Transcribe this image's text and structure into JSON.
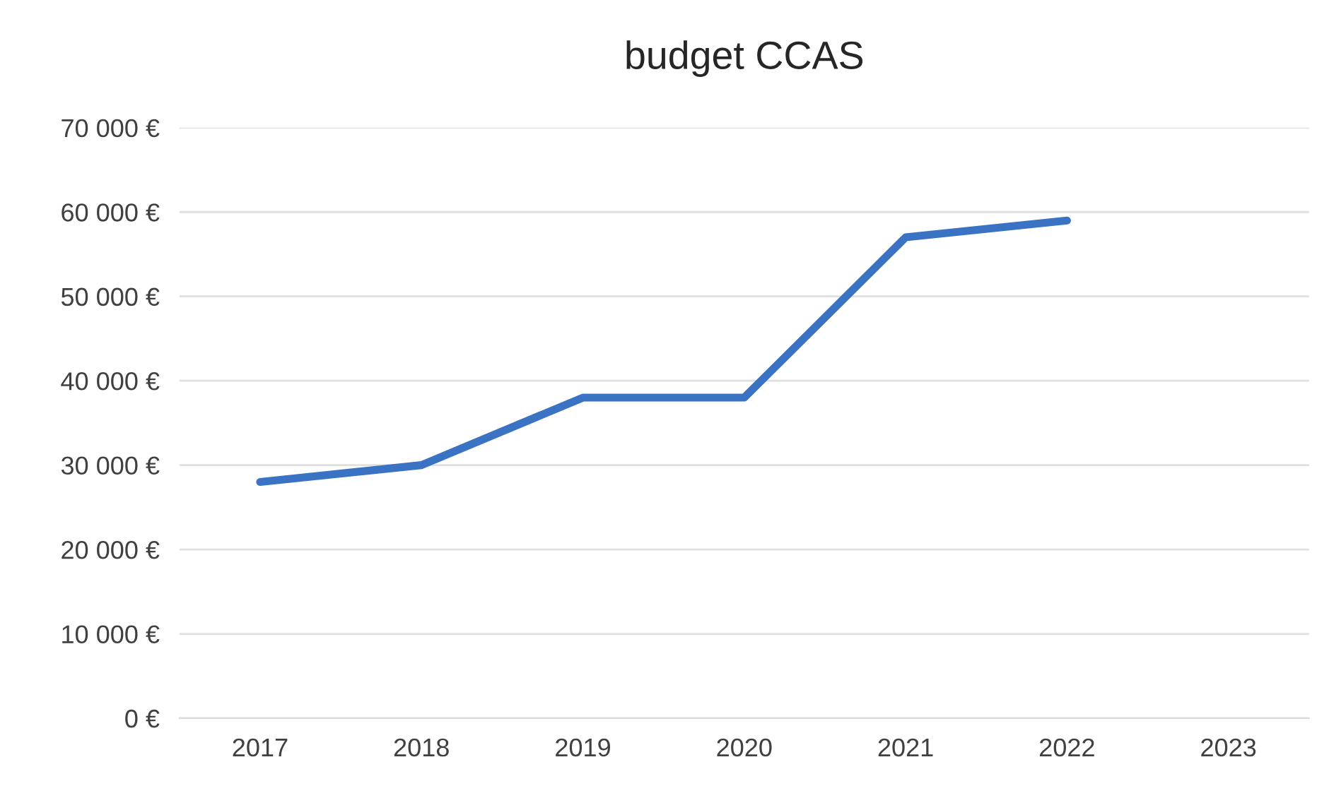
{
  "chart_data": {
    "type": "line",
    "title": "budget CCAS",
    "categories": [
      "2017",
      "2018",
      "2019",
      "2020",
      "2021",
      "2022",
      "2023"
    ],
    "series": [
      {
        "color": "#3a72c4",
        "values": [
          28000,
          30000,
          38000,
          38000,
          57000,
          59000,
          null
        ]
      }
    ],
    "ylim": [
      0,
      70000
    ],
    "yticks": [
      {
        "value": 0,
        "label": "0 €"
      },
      {
        "value": 10000,
        "label": "10 000 €"
      },
      {
        "value": 20000,
        "label": "20 000 €"
      },
      {
        "value": 30000,
        "label": "30 000 €"
      },
      {
        "value": 40000,
        "label": "40 000 €"
      },
      {
        "value": 50000,
        "label": "50 000 €"
      },
      {
        "value": 60000,
        "label": "60 000 €"
      },
      {
        "value": 70000,
        "label": "70 000 €"
      }
    ],
    "grid": "y",
    "legend": false
  }
}
